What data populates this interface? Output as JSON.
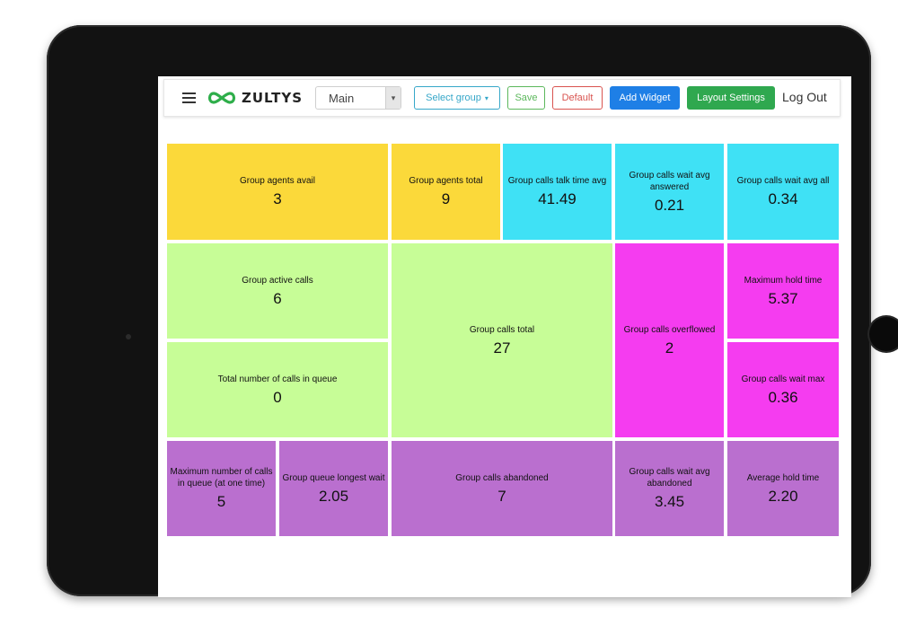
{
  "header": {
    "brand": "ZULTYS",
    "menu_icon": "hamburger-menu-icon",
    "layout_select": {
      "value": "Main"
    },
    "buttons": {
      "select_group": "Select group",
      "save": "Save",
      "default": "Default",
      "add_widget": "Add Widget",
      "layout_settings": "Layout Settings"
    },
    "logout": "Log Out"
  },
  "colors": {
    "yellow": "#fbd93a",
    "cyan": "#3fe1f5",
    "green": "#c7fd97",
    "magenta": "#f53cf0",
    "purple": "#ba6fcf",
    "add_widget_button": "#1e7fe6",
    "layout_settings_button": "#2fa84f"
  },
  "widgets": [
    {
      "id": "group-agents-avail",
      "label": "Group agents avail",
      "value": "3"
    },
    {
      "id": "group-agents-total",
      "label": "Group agents total",
      "value": "9"
    },
    {
      "id": "group-calls-talk-time-avg",
      "label": "Group calls talk time avg",
      "value": "41.49"
    },
    {
      "id": "group-calls-wait-avg-answered",
      "label": "Group calls wait avg answered",
      "value": "0.21"
    },
    {
      "id": "group-calls-wait-avg-all",
      "label": "Group calls wait avg all",
      "value": "0.34"
    },
    {
      "id": "group-active-calls",
      "label": "Group active calls",
      "value": "6"
    },
    {
      "id": "group-calls-total",
      "label": "Group calls total",
      "value": "27"
    },
    {
      "id": "group-calls-overflowed",
      "label": "Group calls overflowed",
      "value": "2"
    },
    {
      "id": "maximum-hold-time",
      "label": "Maximum hold time",
      "value": "5.37"
    },
    {
      "id": "total-number-of-calls-in-queue",
      "label": "Total number of calls in queue",
      "value": "0"
    },
    {
      "id": "group-calls-wait-max",
      "label": "Group calls wait max",
      "value": "0.36"
    },
    {
      "id": "maximum-number-of-calls-in-queue",
      "label": "Maximum number of calls in queue (at one time)",
      "value": "5"
    },
    {
      "id": "group-queue-longest-wait",
      "label": "Group queue longest wait",
      "value": "2.05"
    },
    {
      "id": "group-calls-abandoned",
      "label": "Group calls abandoned",
      "value": "7"
    },
    {
      "id": "group-calls-wait-avg-abandoned",
      "label": "Group calls wait avg abandoned",
      "value": "3.45"
    },
    {
      "id": "average-hold-time",
      "label": "Average hold time",
      "value": "2.20"
    }
  ]
}
